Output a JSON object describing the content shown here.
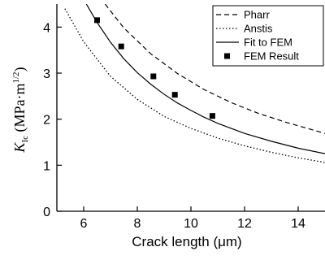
{
  "chart_data": {
    "type": "line",
    "xlabel": "Crack length (μm)",
    "ylabel": "K_Ic (MPa·m^(1/2))",
    "ylabel_parts": {
      "symbol": "K",
      "subscript": "Ic",
      "open": " (MPa·m",
      "superscript": "1/2",
      "close": ")"
    },
    "xlim": [
      5,
      15
    ],
    "ylim": [
      0,
      4.5
    ],
    "x_ticks": [
      6,
      8,
      10,
      12,
      14
    ],
    "y_ticks": [
      0,
      1,
      2,
      3,
      4
    ],
    "grid": false,
    "legend_position": "top-right",
    "series": [
      {
        "name": "Pharr",
        "style": "dashed",
        "color": "#000000",
        "x": [
          6.8,
          7.5,
          8.5,
          9.5,
          10.5,
          11.5,
          12.5,
          13.5,
          15.0
        ],
        "y": [
          4.5,
          3.98,
          3.42,
          2.99,
          2.64,
          2.36,
          2.13,
          1.94,
          1.69
        ]
      },
      {
        "name": "Anstis",
        "style": "dotted",
        "color": "#000000",
        "x": [
          5.3,
          6.0,
          7.0,
          8.0,
          9.0,
          10.0,
          11.0,
          12.0,
          13.0,
          14.0,
          15.0
        ],
        "y": [
          4.4,
          3.68,
          2.93,
          2.43,
          2.06,
          1.8,
          1.59,
          1.42,
          1.28,
          1.16,
          1.06
        ]
      },
      {
        "name": "Fit to FEM",
        "style": "solid",
        "color": "#000000",
        "x": [
          6.1,
          6.5,
          7.0,
          7.5,
          8.0,
          8.5,
          9.0,
          9.5,
          10.0,
          10.5,
          11.0,
          12.0,
          13.0,
          14.0,
          15.0
        ],
        "y": [
          4.5,
          4.1,
          3.67,
          3.31,
          3.01,
          2.76,
          2.54,
          2.35,
          2.19,
          2.04,
          1.91,
          1.69,
          1.52,
          1.37,
          1.25
        ]
      },
      {
        "name": "FEM Result",
        "style": "markers",
        "marker": "square",
        "color": "#000000",
        "x": [
          6.5,
          7.4,
          8.6,
          9.4,
          10.8
        ],
        "y": [
          4.15,
          3.58,
          2.93,
          2.53,
          2.07
        ]
      }
    ]
  }
}
